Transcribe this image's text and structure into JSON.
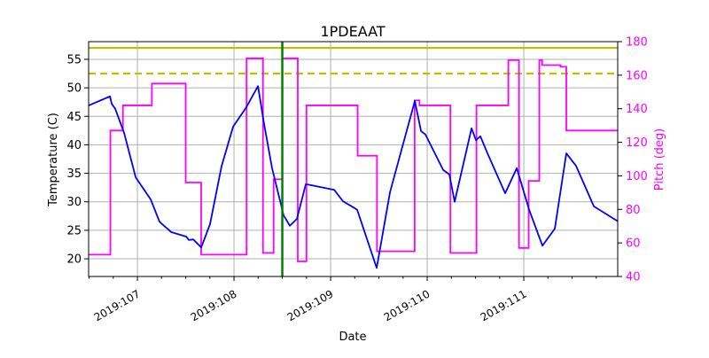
{
  "chart_data": {
    "type": "line",
    "title": "1PDEAAT",
    "xlabel": "Date",
    "ylabel": "Temperature (C)",
    "ylabel_right": "Pitch (deg)",
    "xlim": [
      106.495,
      111.972
    ],
    "ylim": [
      16.9,
      58.1
    ],
    "ylim_right": [
      40,
      180
    ],
    "grid": true,
    "x_ticks": [
      {
        "value": 107,
        "label": "2019:107"
      },
      {
        "value": 108,
        "label": "2019:108"
      },
      {
        "value": 109,
        "label": "2019:109"
      },
      {
        "value": 110,
        "label": "2019:110"
      },
      {
        "value": 111,
        "label": "2019:111"
      }
    ],
    "y_ticks": [
      20,
      25,
      30,
      35,
      40,
      45,
      50,
      55
    ],
    "y_ticks_right": [
      40,
      60,
      80,
      100,
      120,
      140,
      160,
      180
    ],
    "colors": {
      "temperature": "#0000ff",
      "pitch": "#ff00ff",
      "limits": "#bfbf00",
      "now": "#008000",
      "right_axis": "#ff00ff"
    },
    "hlines": [
      {
        "value": 57.0,
        "style": "solid"
      },
      {
        "value": 52.5,
        "style": "dashed"
      }
    ],
    "vline": 108.5,
    "temperature": [
      [
        106.495,
        46.9
      ],
      [
        106.716,
        48.5
      ],
      [
        106.734,
        47.2
      ],
      [
        106.771,
        46.3
      ],
      [
        106.862,
        42.1
      ],
      [
        106.982,
        34.3
      ],
      [
        107.138,
        30.4
      ],
      [
        107.229,
        26.5
      ],
      [
        107.349,
        24.7
      ],
      [
        107.505,
        23.9
      ],
      [
        107.532,
        23.3
      ],
      [
        107.578,
        23.4
      ],
      [
        107.661,
        22.0
      ],
      [
        107.752,
        26.1
      ],
      [
        107.872,
        36.3
      ],
      [
        107.991,
        43.2
      ],
      [
        108.128,
        46.6
      ],
      [
        108.248,
        50.3
      ],
      [
        108.312,
        43.6
      ],
      [
        108.394,
        35.9
      ],
      [
        108.514,
        27.6
      ],
      [
        108.578,
        25.8
      ],
      [
        108.651,
        27.0
      ],
      [
        108.743,
        33.1
      ],
      [
        109.037,
        32.1
      ],
      [
        109.128,
        30.1
      ],
      [
        109.248,
        28.9
      ],
      [
        109.275,
        28.6
      ],
      [
        109.477,
        18.4
      ],
      [
        109.615,
        31.7
      ],
      [
        109.872,
        47.7
      ],
      [
        109.936,
        42.4
      ],
      [
        109.982,
        41.8
      ],
      [
        110.165,
        35.6
      ],
      [
        110.229,
        34.8
      ],
      [
        110.284,
        30.0
      ],
      [
        110.459,
        42.9
      ],
      [
        110.505,
        40.8
      ],
      [
        110.55,
        41.5
      ],
      [
        110.624,
        38.5
      ],
      [
        110.807,
        31.5
      ],
      [
        110.927,
        35.9
      ],
      [
        111.055,
        28.6
      ],
      [
        111.193,
        22.3
      ],
      [
        111.321,
        25.3
      ],
      [
        111.44,
        38.5
      ],
      [
        111.541,
        36.3
      ],
      [
        111.725,
        29.2
      ],
      [
        111.972,
        26.6
      ]
    ],
    "pitch": [
      [
        106.495,
        53
      ],
      [
        106.72,
        127
      ],
      [
        106.85,
        142
      ],
      [
        107.15,
        155
      ],
      [
        107.5,
        96
      ],
      [
        107.66,
        53
      ],
      [
        108.13,
        170
      ],
      [
        108.3,
        54
      ],
      [
        108.41,
        98
      ],
      [
        108.5,
        170
      ],
      [
        108.66,
        49
      ],
      [
        108.75,
        142
      ],
      [
        109.28,
        112
      ],
      [
        109.48,
        55
      ],
      [
        109.87,
        145
      ],
      [
        109.92,
        142
      ],
      [
        110.24,
        54
      ],
      [
        110.51,
        142
      ],
      [
        110.84,
        169
      ],
      [
        110.95,
        57
      ],
      [
        111.05,
        97
      ],
      [
        111.16,
        169
      ],
      [
        111.19,
        166
      ],
      [
        111.38,
        165
      ],
      [
        111.44,
        127
      ],
      [
        111.972,
        127
      ]
    ]
  }
}
